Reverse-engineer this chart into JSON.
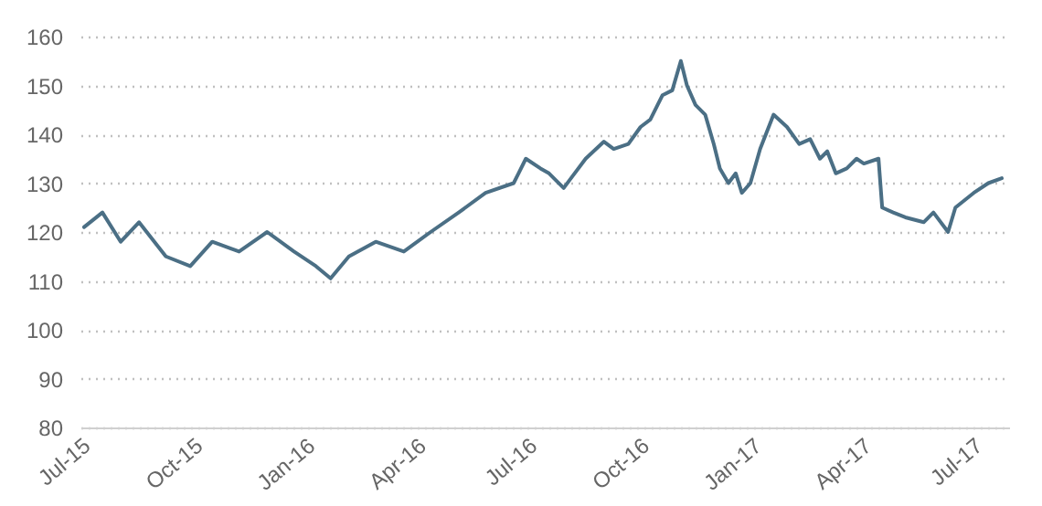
{
  "chart_data": {
    "type": "line",
    "x": [
      "2015-07-04",
      "2015-07-19",
      "2015-08-03",
      "2015-08-18",
      "2015-09-09",
      "2015-09-29",
      "2015-10-17",
      "2015-11-08",
      "2015-12-01",
      "2015-12-23",
      "2016-01-10",
      "2016-01-22",
      "2016-02-06",
      "2016-02-28",
      "2016-03-22",
      "2016-04-13",
      "2016-05-06",
      "2016-05-28",
      "2016-06-20",
      "2016-06-24",
      "2016-06-30",
      "2016-07-12",
      "2016-07-19",
      "2016-07-31",
      "2016-08-06",
      "2016-08-18",
      "2016-09-02",
      "2016-09-10",
      "2016-09-22",
      "2016-10-02",
      "2016-10-10",
      "2016-10-20",
      "2016-10-28",
      "2016-11-04",
      "2016-11-09",
      "2016-11-16",
      "2016-11-24",
      "2016-12-01",
      "2016-12-06",
      "2016-12-13",
      "2016-12-19",
      "2016-12-24",
      "2016-12-31",
      "2017-01-08",
      "2017-01-19",
      "2017-01-30",
      "2017-02-09",
      "2017-02-18",
      "2017-02-26",
      "2017-03-04",
      "2017-03-11",
      "2017-03-20",
      "2017-03-28",
      "2017-04-03",
      "2017-04-15",
      "2017-04-18",
      "2017-04-27",
      "2017-05-07",
      "2017-05-22",
      "2017-05-30",
      "2017-06-11",
      "2017-06-17",
      "2017-07-02",
      "2017-07-14",
      "2017-07-25"
    ],
    "series": [
      {
        "color": "#4b6f85",
        "values": [
          121,
          124,
          118,
          122,
          115,
          113,
          118,
          116,
          120,
          116,
          113,
          110.5,
          115,
          118,
          116,
          120,
          124,
          128,
          130,
          132,
          135,
          133,
          132,
          129,
          131,
          135,
          138.5,
          137,
          138,
          141.5,
          143,
          148,
          149,
          155,
          150,
          146,
          144,
          138,
          133,
          130,
          132,
          128,
          130,
          137,
          144,
          141.5,
          138,
          139,
          135,
          136.5,
          132,
          133,
          135,
          134,
          135,
          125,
          124,
          123,
          122,
          124,
          120,
          125,
          128,
          130,
          131
        ]
      }
    ],
    "xlim": [
      "2015-07-01",
      "2017-07-31"
    ],
    "xticks": [
      {
        "value": "2015-07-01",
        "label": "Jul-15"
      },
      {
        "value": "2015-10-01",
        "label": "Oct-15"
      },
      {
        "value": "2016-01-01",
        "label": "Jan-16"
      },
      {
        "value": "2016-04-01",
        "label": "Apr-16"
      },
      {
        "value": "2016-07-01",
        "label": "Jul-16"
      },
      {
        "value": "2016-10-01",
        "label": "Oct-16"
      },
      {
        "value": "2017-01-01",
        "label": "Jan-17"
      },
      {
        "value": "2017-04-01",
        "label": "Apr-17"
      },
      {
        "value": "2017-07-01",
        "label": "Jul-17"
      }
    ],
    "ylim": [
      80,
      160
    ],
    "yticks": [
      80,
      90,
      100,
      110,
      120,
      130,
      140,
      150,
      160
    ],
    "grid": "y",
    "marker": "none",
    "line_style": "solid"
  }
}
